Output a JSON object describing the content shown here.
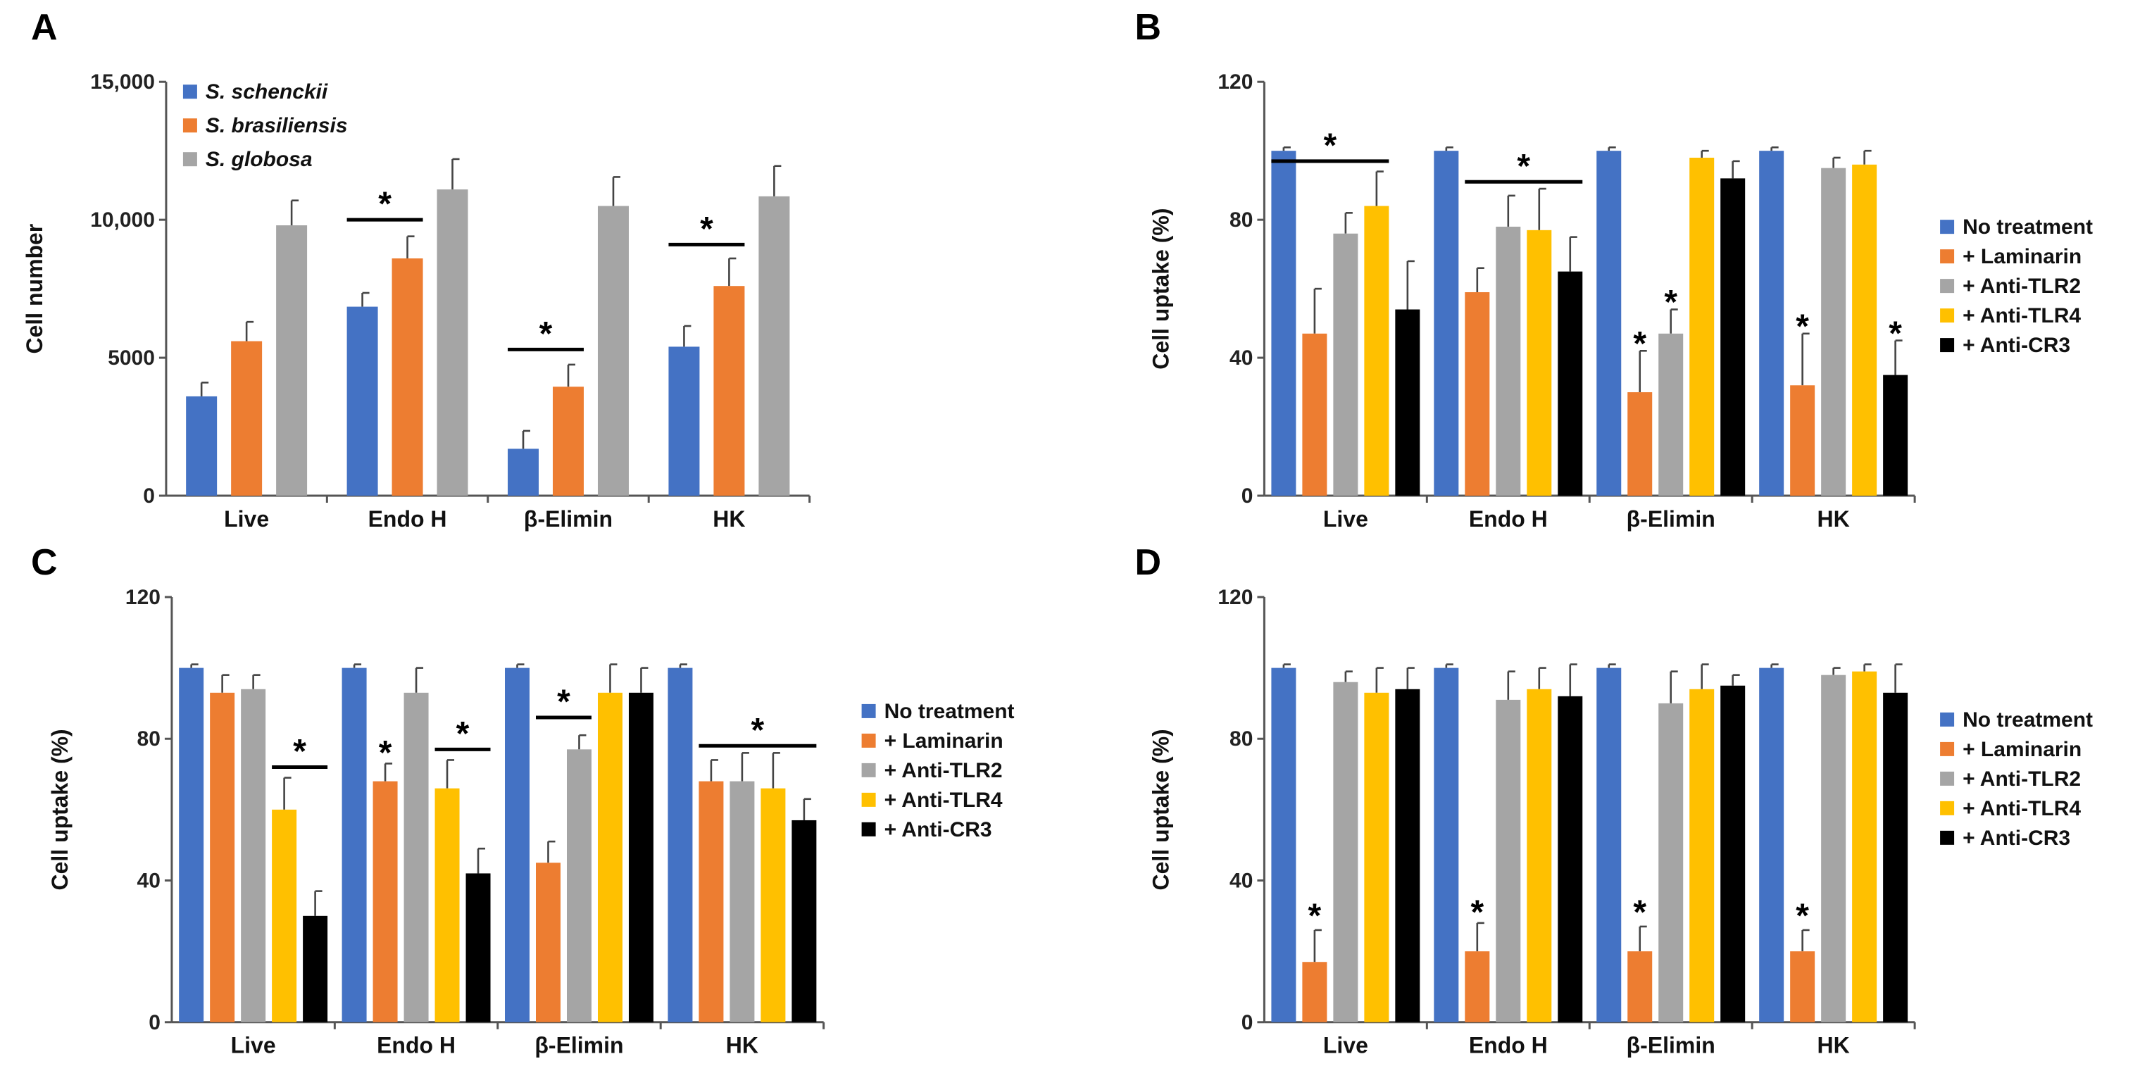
{
  "colors": {
    "blue": "#4472C4",
    "orange": "#ED7D31",
    "gray": "#A5A5A5",
    "yellow": "#FFC000",
    "black": "#000000"
  },
  "chart_data": [
    {
      "panel": "A",
      "type": "bar",
      "ylabel": "Cell number",
      "ylim": [
        0,
        15000
      ],
      "yticks": [
        0,
        5000,
        10000,
        15000
      ],
      "ytick_labels": [
        "0",
        "5000",
        "10,000",
        "15,000"
      ],
      "categories": [
        "Live",
        "Endo H",
        "β-Elimin",
        "HK"
      ],
      "legend_position": "top-left",
      "legend_italic": true,
      "series": [
        {
          "name": "S. schenckii",
          "color": "#4472C4",
          "values": [
            3600,
            6850,
            1700,
            5400
          ],
          "errors": [
            500,
            500,
            650,
            750
          ]
        },
        {
          "name": "S. brasiliensis",
          "color": "#ED7D31",
          "values": [
            5600,
            8600,
            3950,
            7600
          ],
          "errors": [
            700,
            800,
            800,
            1000
          ]
        },
        {
          "name": "S. globosa",
          "color": "#A5A5A5",
          "values": [
            9800,
            11100,
            10500,
            10850
          ],
          "errors": [
            900,
            1100,
            1050,
            1100
          ]
        }
      ],
      "annotations": [
        {
          "group": 1,
          "from": 0,
          "to": 1,
          "y": 10000,
          "text": "*"
        },
        {
          "group": 2,
          "from": 0,
          "to": 1,
          "y": 5300,
          "text": "*"
        },
        {
          "group": 3,
          "from": 0,
          "to": 1,
          "y": 9100,
          "text": "*"
        }
      ]
    },
    {
      "panel": "B",
      "type": "bar",
      "ylabel": "Cell uptake (%)",
      "ylim": [
        0,
        120
      ],
      "yticks": [
        0,
        40,
        80,
        120
      ],
      "ytick_labels": [
        "0",
        "40",
        "80",
        "120"
      ],
      "categories": [
        "Live",
        "Endo H",
        "β-Elimin",
        "HK"
      ],
      "legend_position": "right",
      "series": [
        {
          "name": "No treatment",
          "color": "#4472C4",
          "values": [
            100,
            100,
            100,
            100
          ],
          "errors": [
            1,
            1,
            1,
            1
          ]
        },
        {
          "name": "+ Laminarin",
          "color": "#ED7D31",
          "values": [
            47,
            59,
            30,
            32
          ],
          "errors": [
            13,
            7,
            12,
            15
          ]
        },
        {
          "name": "+ Anti-TLR2",
          "color": "#A5A5A5",
          "values": [
            76,
            78,
            47,
            95
          ],
          "errors": [
            6,
            9,
            7,
            3
          ]
        },
        {
          "name": "+ Anti-TLR4",
          "color": "#FFC000",
          "values": [
            84,
            77,
            98,
            96
          ],
          "errors": [
            10,
            12,
            2,
            4
          ]
        },
        {
          "name": "+ Anti-CR3",
          "color": "#000000",
          "values": [
            54,
            65,
            92,
            35
          ],
          "errors": [
            14,
            10,
            5,
            10
          ]
        }
      ],
      "annotations": [
        {
          "group": 0,
          "from": 0,
          "to": 3,
          "y": 97,
          "text": "*"
        },
        {
          "group": 1,
          "from": 1,
          "to": 4,
          "y": 91,
          "text": "*"
        },
        {
          "group": 2,
          "from": 1,
          "to": 1,
          "y": 44,
          "text": "*"
        },
        {
          "group": 2,
          "from": 2,
          "to": 2,
          "y": 56,
          "text": "*"
        },
        {
          "group": 3,
          "from": 1,
          "to": 1,
          "y": 49,
          "text": "*"
        },
        {
          "group": 3,
          "from": 4,
          "to": 4,
          "y": 47,
          "text": "*"
        }
      ]
    },
    {
      "panel": "C",
      "type": "bar",
      "ylabel": "Cell uptake (%)",
      "ylim": [
        0,
        120
      ],
      "yticks": [
        0,
        40,
        80,
        120
      ],
      "ytick_labels": [
        "0",
        "40",
        "80",
        "120"
      ],
      "categories": [
        "Live",
        "Endo H",
        "β-Elimin",
        "HK"
      ],
      "legend_position": "right",
      "series": [
        {
          "name": "No treatment",
          "color": "#4472C4",
          "values": [
            100,
            100,
            100,
            100
          ],
          "errors": [
            1,
            1,
            1,
            1
          ]
        },
        {
          "name": "+ Laminarin",
          "color": "#ED7D31",
          "values": [
            93,
            68,
            45,
            68
          ],
          "errors": [
            5,
            5,
            6,
            6
          ]
        },
        {
          "name": "+ Anti-TLR2",
          "color": "#A5A5A5",
          "values": [
            94,
            93,
            77,
            68
          ],
          "errors": [
            4,
            7,
            4,
            8
          ]
        },
        {
          "name": "+ Anti-TLR4",
          "color": "#FFC000",
          "values": [
            60,
            66,
            93,
            66
          ],
          "errors": [
            9,
            8,
            8,
            10
          ]
        },
        {
          "name": "+ Anti-CR3",
          "color": "#000000",
          "values": [
            30,
            42,
            93,
            57
          ],
          "errors": [
            7,
            7,
            7,
            6
          ]
        }
      ],
      "annotations": [
        {
          "group": 0,
          "from": 3,
          "to": 4,
          "y": 72,
          "text": "*"
        },
        {
          "group": 1,
          "from": 1,
          "to": 1,
          "y": 76,
          "text": "*"
        },
        {
          "group": 1,
          "from": 3,
          "to": 4,
          "y": 77,
          "text": "*"
        },
        {
          "group": 2,
          "from": 1,
          "to": 2,
          "y": 86,
          "text": "*"
        },
        {
          "group": 3,
          "from": 1,
          "to": 4,
          "y": 78,
          "text": "*"
        }
      ]
    },
    {
      "panel": "D",
      "type": "bar",
      "ylabel": "Cell uptake (%)",
      "ylim": [
        0,
        120
      ],
      "yticks": [
        0,
        40,
        80,
        120
      ],
      "ytick_labels": [
        "0",
        "40",
        "80",
        "120"
      ],
      "categories": [
        "Live",
        "Endo H",
        "β-Elimin",
        "HK"
      ],
      "legend_position": "right",
      "series": [
        {
          "name": "No treatment",
          "color": "#4472C4",
          "values": [
            100,
            100,
            100,
            100
          ],
          "errors": [
            1,
            1,
            1,
            1
          ]
        },
        {
          "name": "+ Laminarin",
          "color": "#ED7D31",
          "values": [
            17,
            20,
            20,
            20
          ],
          "errors": [
            9,
            8,
            7,
            6
          ]
        },
        {
          "name": "+ Anti-TLR2",
          "color": "#A5A5A5",
          "values": [
            96,
            91,
            90,
            98
          ],
          "errors": [
            3,
            8,
            9,
            2
          ]
        },
        {
          "name": "+ Anti-TLR4",
          "color": "#FFC000",
          "values": [
            93,
            94,
            94,
            99
          ],
          "errors": [
            7,
            6,
            7,
            2
          ]
        },
        {
          "name": "+ Anti-CR3",
          "color": "#000000",
          "values": [
            94,
            92,
            95,
            93
          ],
          "errors": [
            6,
            9,
            3,
            8
          ]
        }
      ],
      "annotations": [
        {
          "group": 0,
          "from": 1,
          "to": 1,
          "y": 30,
          "text": "*"
        },
        {
          "group": 1,
          "from": 1,
          "to": 1,
          "y": 31,
          "text": "*"
        },
        {
          "group": 2,
          "from": 1,
          "to": 1,
          "y": 31,
          "text": "*"
        },
        {
          "group": 3,
          "from": 1,
          "to": 1,
          "y": 30,
          "text": "*"
        }
      ]
    }
  ]
}
